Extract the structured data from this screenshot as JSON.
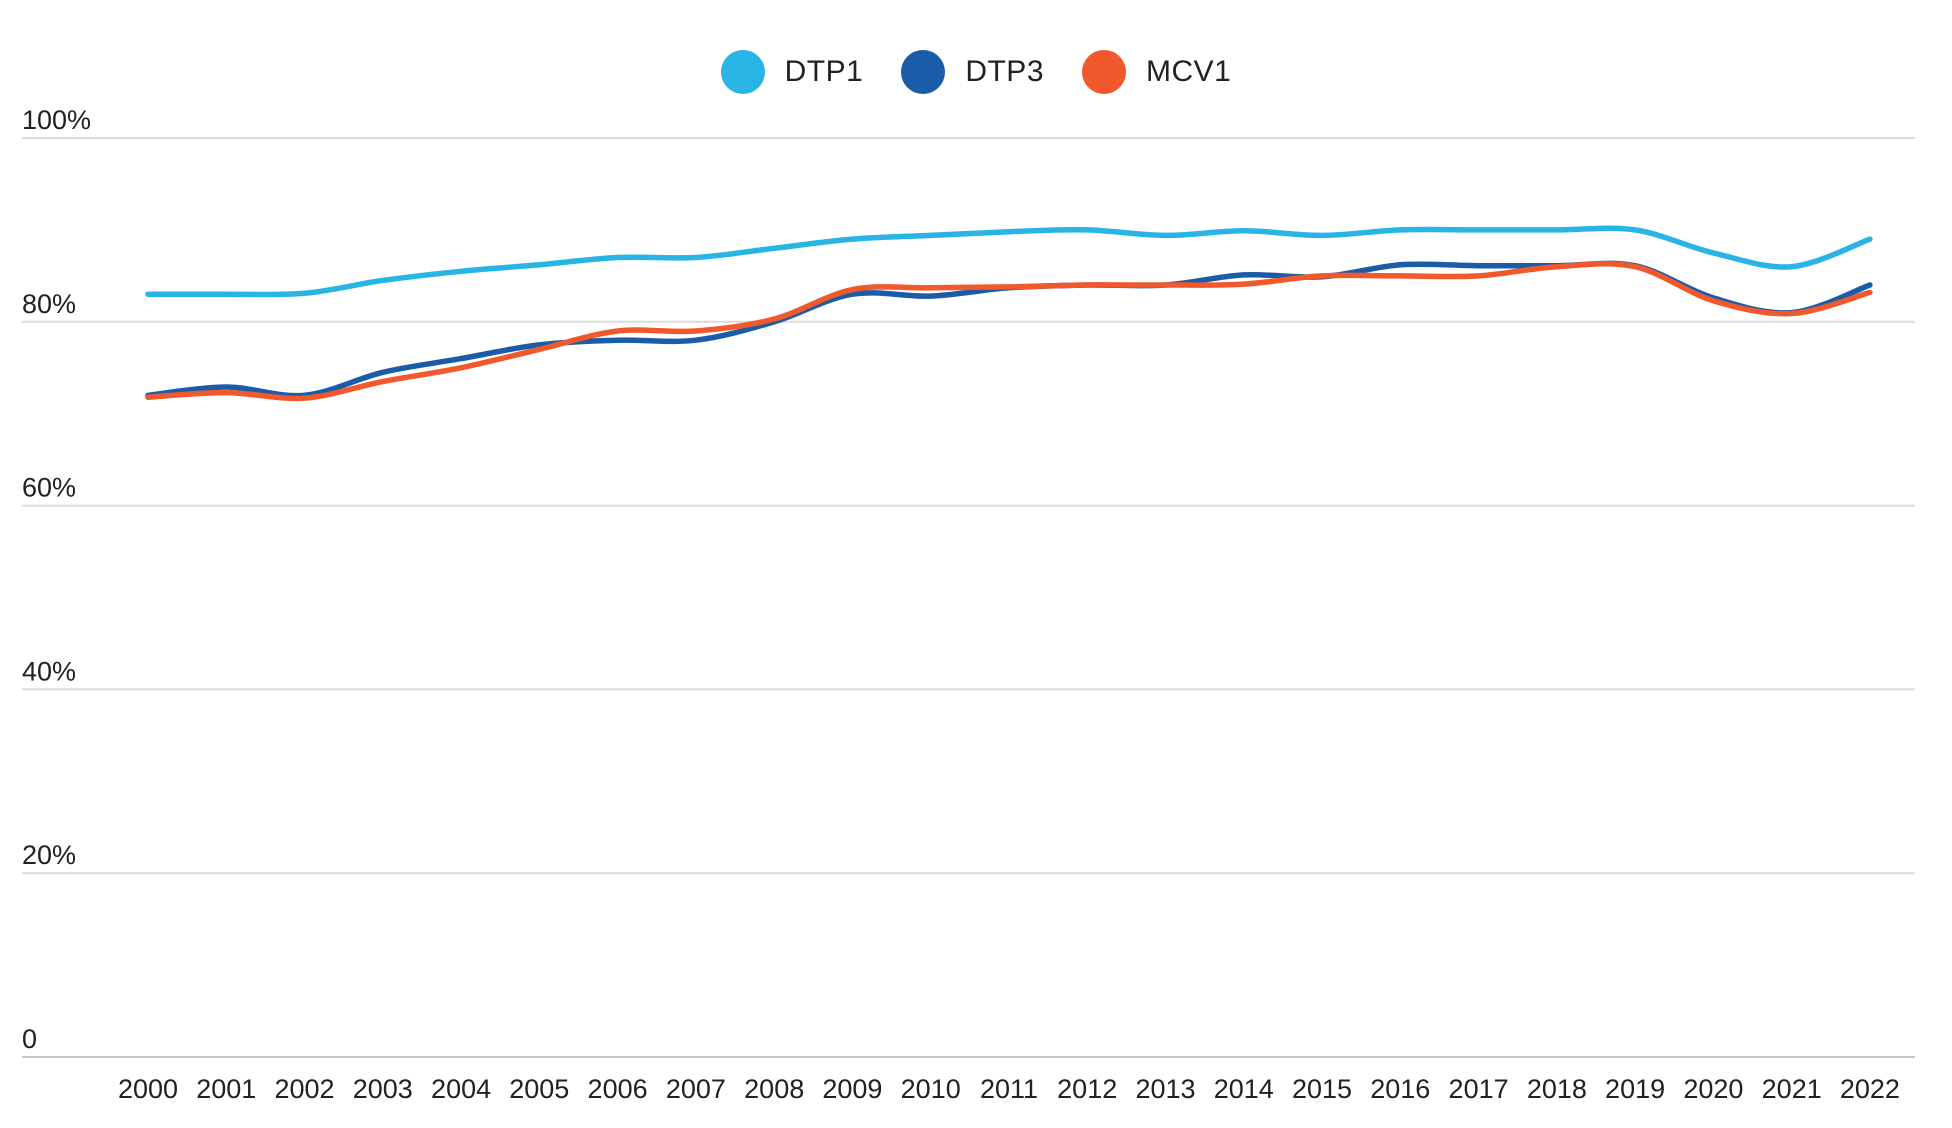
{
  "chart_data": {
    "type": "line",
    "title": "",
    "x": [
      2000,
      2001,
      2002,
      2003,
      2004,
      2005,
      2006,
      2007,
      2008,
      2009,
      2010,
      2011,
      2012,
      2013,
      2014,
      2015,
      2016,
      2017,
      2018,
      2019,
      2020,
      2021,
      2022
    ],
    "series": [
      {
        "name": "DTP1",
        "color": "#29B4E6",
        "values": [
          83,
          83,
          83.1,
          84.5,
          85.5,
          86.2,
          87,
          87,
          88,
          89,
          89.4,
          89.8,
          90,
          89.4,
          89.9,
          89.4,
          90,
          90,
          90,
          90,
          87.5,
          86,
          89
        ]
      },
      {
        "name": "DTP3",
        "color": "#1B5CA8",
        "values": [
          72,
          72.9,
          72,
          74.5,
          76,
          77.5,
          78,
          78,
          80,
          83,
          82.8,
          83.7,
          84,
          84,
          85.1,
          84.9,
          86.2,
          86.1,
          86.1,
          86.1,
          82.6,
          81,
          84
        ]
      },
      {
        "name": "MCV1",
        "color": "#F1582B",
        "values": [
          71.8,
          72.3,
          71.7,
          73.5,
          75,
          77,
          79,
          79,
          80.3,
          83.5,
          83.7,
          83.8,
          84,
          84,
          84.1,
          85,
          85,
          85,
          86,
          86,
          82.3,
          80.9,
          83.2
        ]
      }
    ],
    "yticks": [
      100,
      80,
      60,
      40,
      20,
      0
    ],
    "ytick_labels": [
      "100%",
      "80%",
      "60%",
      "40%",
      "20%",
      "0"
    ],
    "ylim": [
      0,
      100
    ],
    "xlabel": "",
    "ylabel": "",
    "grid": "horizontal",
    "legend_position": "top-center",
    "colors": {
      "text": "#212121",
      "gridline": "#DBDBDB",
      "zero_gridline": "#C6C6C6",
      "background": "#FFFFFF"
    }
  }
}
